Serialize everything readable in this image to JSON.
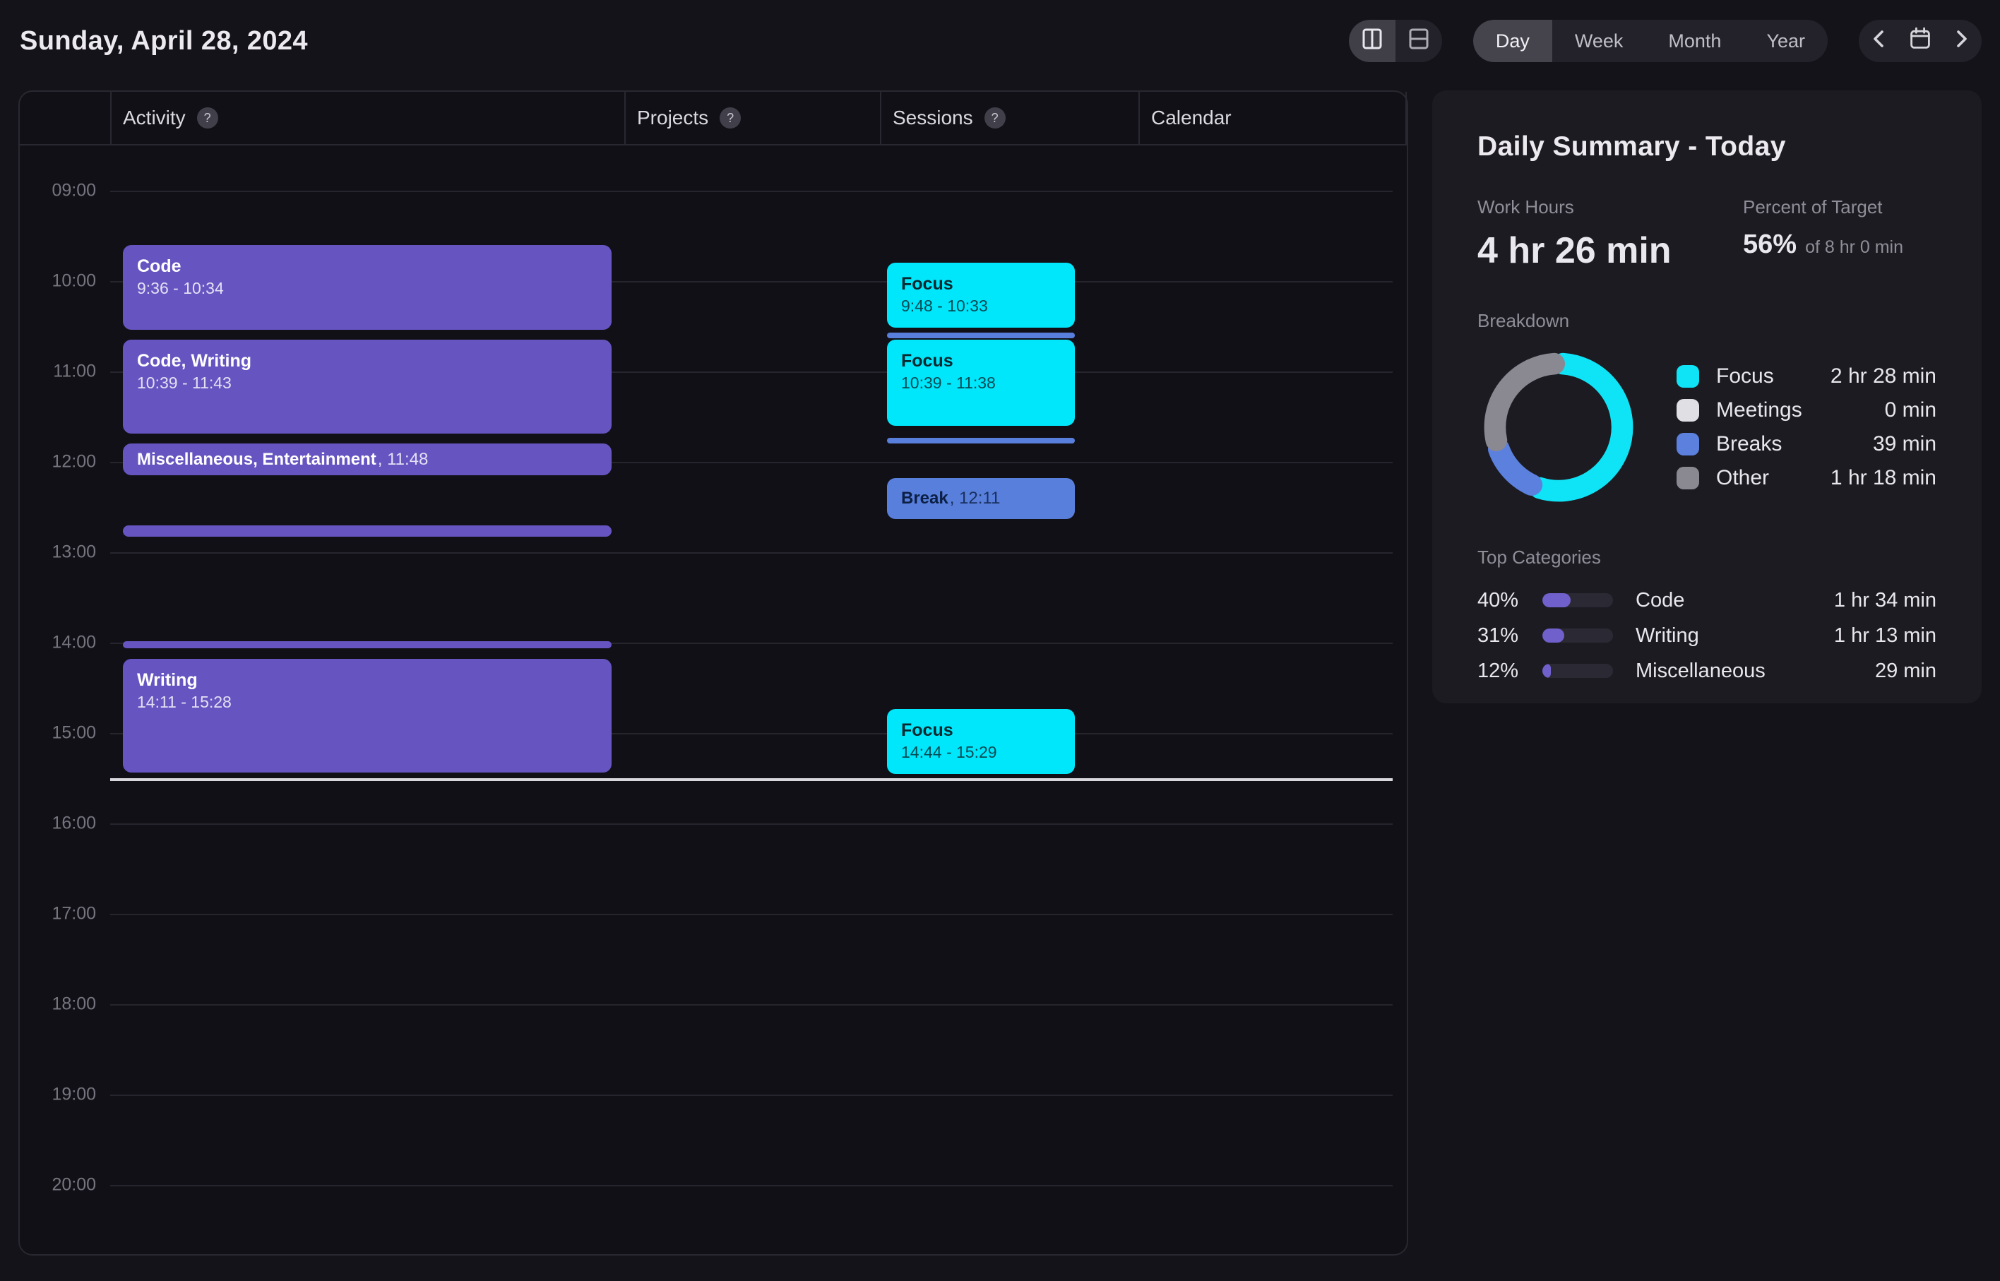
{
  "page": {
    "date": "Sunday, April 28, 2024"
  },
  "toolbar": {
    "layout_toggle": [
      "split-columns",
      "split-rows"
    ],
    "view_tabs": [
      "Day",
      "Week",
      "Month",
      "Year"
    ],
    "selected_tab": "Day"
  },
  "timeline": {
    "columns": [
      {
        "label": "Activity",
        "help": true
      },
      {
        "label": "Projects",
        "help": true
      },
      {
        "label": "Sessions",
        "help": true
      },
      {
        "label": "Calendar",
        "help": false
      }
    ],
    "hours": [
      "09:00",
      "10:00",
      "11:00",
      "12:00",
      "13:00",
      "14:00",
      "15:00",
      "16:00",
      "17:00",
      "18:00",
      "19:00",
      "20:00"
    ],
    "events": [
      {
        "column": "activity",
        "kind": "block",
        "color": "purple",
        "title": "Code",
        "time": "9:36 - 10:34",
        "start_min": 576,
        "end_min": 634
      },
      {
        "column": "activity",
        "kind": "block",
        "color": "purple",
        "title": "Code, Writing",
        "time": "10:39 - 11:43",
        "start_min": 639,
        "end_min": 703
      },
      {
        "column": "activity",
        "kind": "inline",
        "color": "purple",
        "title": "Miscellaneous, Entertainment",
        "time": ", 11:48",
        "start_min": 708,
        "end_min": 731
      },
      {
        "column": "activity",
        "kind": "bar",
        "color": "purple",
        "start_min": 762,
        "end_min": 771
      },
      {
        "column": "activity",
        "kind": "bar",
        "color": "purple",
        "start_min": 839,
        "end_min": 845
      },
      {
        "column": "activity",
        "kind": "block",
        "color": "purple",
        "title": "Writing",
        "time": "14:11 - 15:28",
        "start_min": 851,
        "end_min": 928
      },
      {
        "column": "sessions",
        "kind": "block",
        "color": "cyan",
        "title": "Focus",
        "time": "9:48 - 10:33",
        "start_min": 588,
        "end_min": 633
      },
      {
        "column": "sessions",
        "kind": "bar",
        "color": "blue",
        "start_min": 634,
        "end_min": 639
      },
      {
        "column": "sessions",
        "kind": "block",
        "color": "cyan",
        "title": "Focus",
        "time": "10:39 - 11:38",
        "start_min": 639,
        "end_min": 698
      },
      {
        "column": "sessions",
        "kind": "bar",
        "color": "blue",
        "start_min": 704,
        "end_min": 709
      },
      {
        "column": "sessions",
        "kind": "inline",
        "color": "blue",
        "title": "Break",
        "time": ", 12:11",
        "start_min": 731,
        "end_min": 760
      },
      {
        "column": "sessions",
        "kind": "block",
        "color": "cyan",
        "title": "Focus",
        "time": "14:44 - 15:29",
        "start_min": 884,
        "end_min": 929
      }
    ],
    "now_min": 930
  },
  "summary": {
    "title": "Daily Summary - Today",
    "work_hours_label": "Work Hours",
    "work_hours_value": "4 hr 26 min",
    "target_label": "Percent of Target",
    "target_percent": "56%",
    "target_of": "of 8 hr 0 min",
    "breakdown_label": "Breakdown",
    "top_categories_label": "Top Categories"
  },
  "chart_data": {
    "type": "pie",
    "title": "Breakdown",
    "legend_position": "right",
    "donut": true,
    "series": [
      {
        "name": "Focus",
        "minutes": 148,
        "value_label": "2 hr 28 min",
        "color": "#0FE4F6"
      },
      {
        "name": "Meetings",
        "minutes": 0,
        "value_label": "0 min",
        "color": "#DFDFE4"
      },
      {
        "name": "Breaks",
        "minutes": 39,
        "value_label": "39 min",
        "color": "#5B80DE"
      },
      {
        "name": "Other",
        "minutes": 78,
        "value_label": "1 hr 18 min",
        "color": "#8A8991"
      }
    ],
    "categories": [
      {
        "percent": "40%",
        "percent_value": 40,
        "name": "Code",
        "value_label": "1 hr 34 min"
      },
      {
        "percent": "31%",
        "percent_value": 31,
        "name": "Writing",
        "value_label": "1 hr 13 min"
      },
      {
        "percent": "12%",
        "percent_value": 12,
        "name": "Miscellaneous",
        "value_label": "29 min"
      }
    ]
  }
}
